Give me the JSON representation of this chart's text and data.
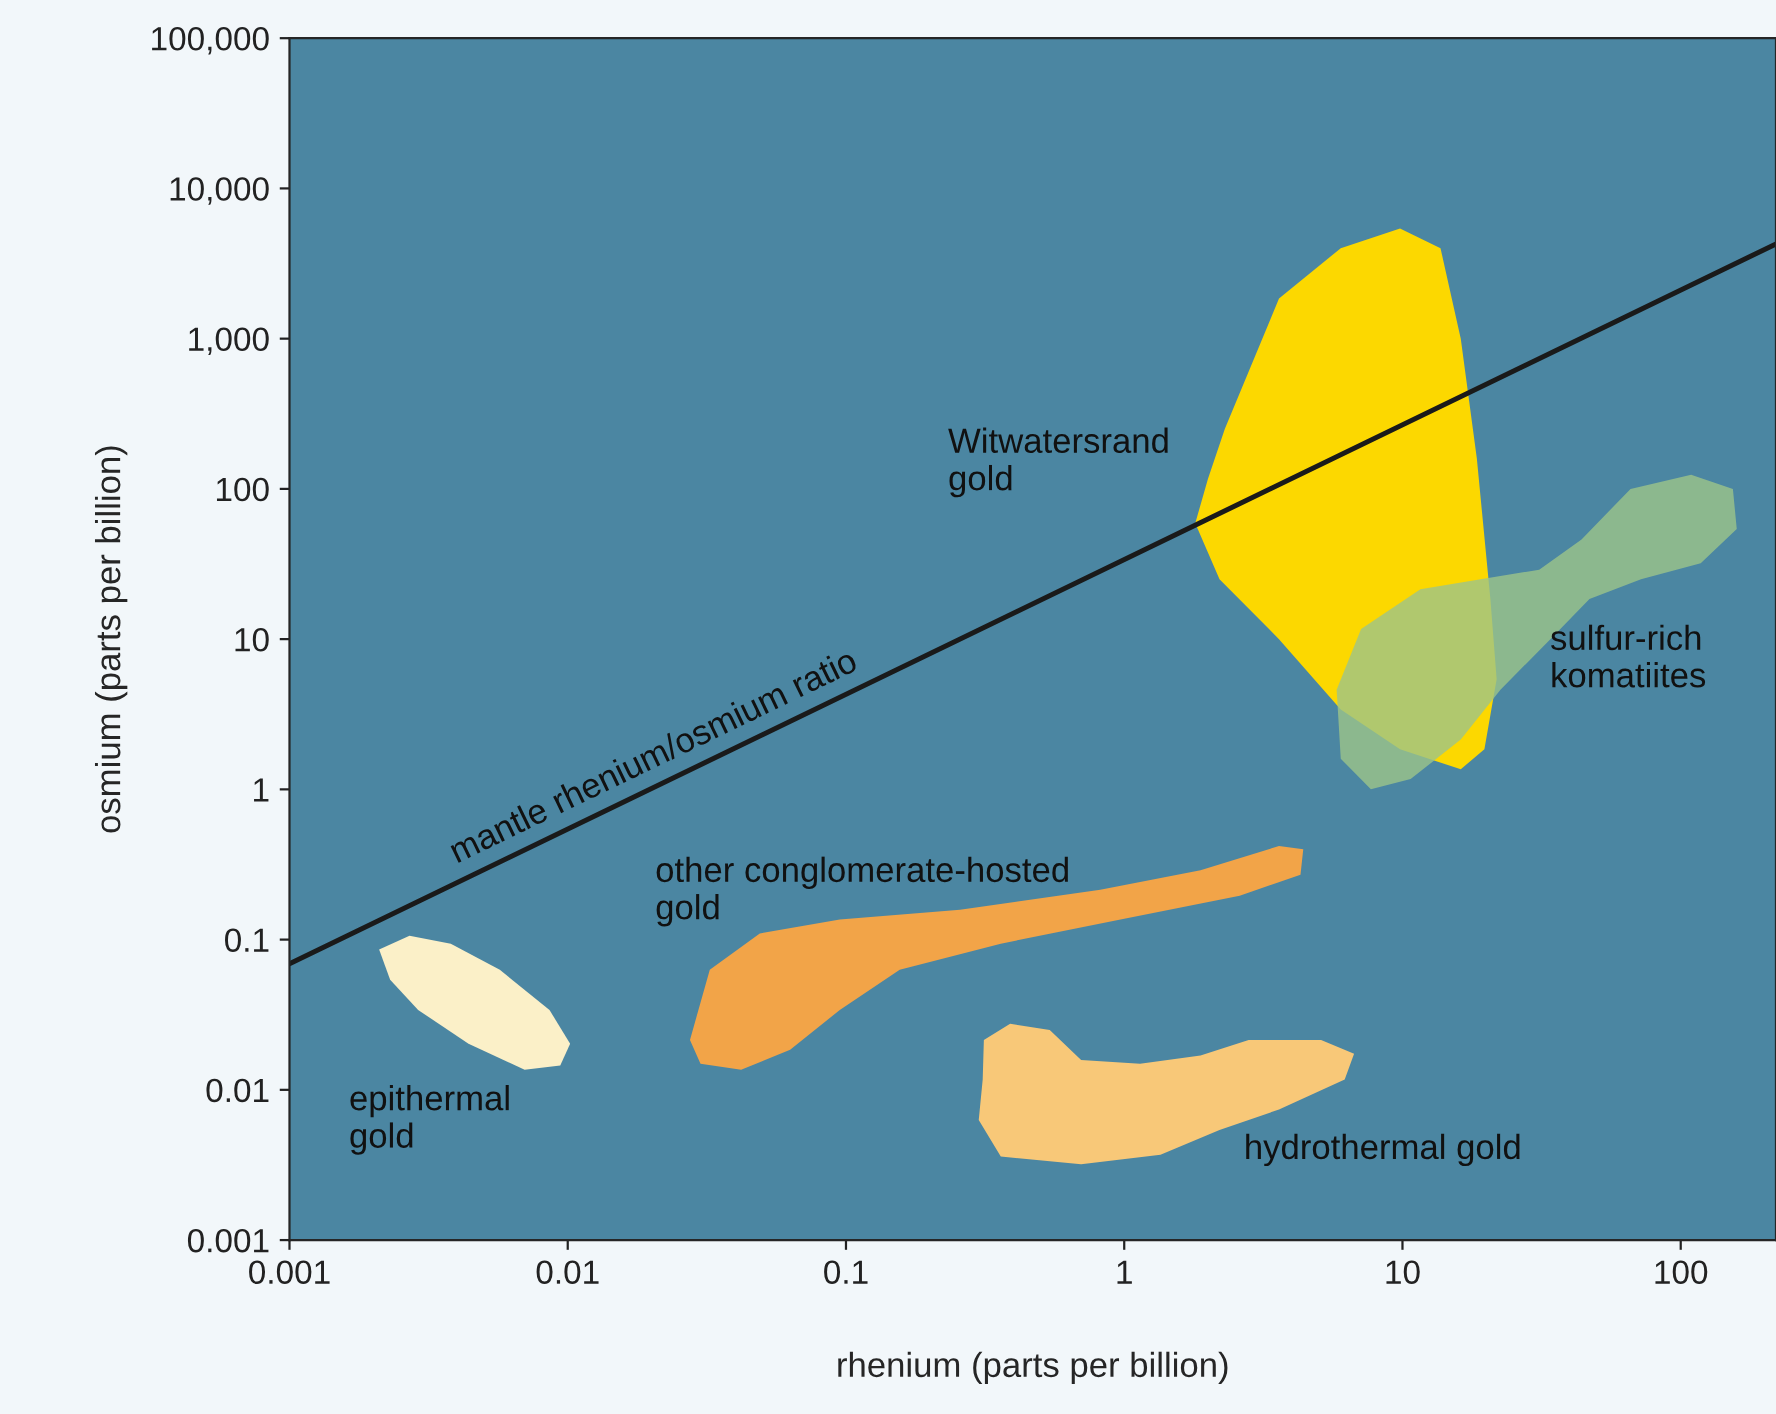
{
  "chart_data": {
    "type": "area",
    "xlabel": "rhenium (parts per billion)",
    "ylabel": "osmium (parts per billion)",
    "log": "xy",
    "grid": false,
    "xlim": [
      0.001,
      220
    ],
    "ylim": [
      0.001,
      100000
    ],
    "xticks": [
      0.001,
      0.01,
      0.1,
      1,
      10,
      100
    ],
    "yticks": [
      0.001,
      0.01,
      0.1,
      1,
      10,
      100,
      {
        "value": 1000,
        "label": "1,000"
      },
      {
        "value": 10000,
        "label": "10,000"
      },
      {
        "value": 100000,
        "label": "100,000"
      }
    ],
    "series": [
      {
        "name": "Witwatersrand\ngold",
        "color": "#fcd800",
        "x": [
          2.3,
          3.6,
          6.0,
          9.8,
          13.7,
          16.2,
          18.5,
          20.7,
          21.8,
          19.7,
          16.2,
          9.8,
          6.0,
          3.6,
          2.2,
          1.8,
          2.0
        ],
        "values": [
          251,
          1850,
          4000,
          5400,
          4000,
          1000,
          160,
          18.5,
          5.4,
          1.85,
          1.36,
          1.85,
          3.4,
          10,
          25,
          59,
          117
        ]
      },
      {
        "name": "sulfur-rich\nkomatiites",
        "color": "#9cc48a",
        "x": [
          5.8,
          7.1,
          11.6,
          19.1,
          31,
          44,
          66,
          109,
          154,
          159,
          118,
          72,
          47,
          34,
          22.5,
          16.2,
          10.7,
          7.7,
          6.0
        ],
        "values": [
          4.6,
          11.7,
          21.5,
          25,
          29,
          46,
          100,
          124,
          100,
          54,
          32,
          25,
          18.5,
          10,
          4.6,
          2.15,
          1.17,
          1.0,
          1.6
        ]
      },
      {
        "name": "other conglomerate-hosted\ngold",
        "color": "#f2a448",
        "x": [
          0.0275,
          0.0324,
          0.049,
          0.095,
          0.257,
          0.82,
          1.88,
          3.6,
          4.4,
          4.3,
          2.6,
          0.97,
          0.36,
          0.156,
          0.095,
          0.063,
          0.042,
          0.03
        ],
        "values": [
          0.0215,
          0.063,
          0.11,
          0.136,
          0.158,
          0.215,
          0.29,
          0.42,
          0.4,
          0.27,
          0.196,
          0.136,
          0.094,
          0.063,
          0.034,
          0.0185,
          0.0136,
          0.0149
        ]
      },
      {
        "name": "hydrothermal gold",
        "color": "#f8c878",
        "x": [
          0.313,
          0.389,
          0.54,
          0.7,
          1.14,
          1.88,
          2.8,
          5.1,
          6.7,
          6.2,
          3.6,
          2.2,
          1.35,
          0.7,
          0.36,
          0.3,
          0.31
        ],
        "values": [
          0.0215,
          0.0275,
          0.025,
          0.0158,
          0.0149,
          0.0169,
          0.0215,
          0.0215,
          0.0174,
          0.0117,
          0.0074,
          0.0054,
          0.0037,
          0.0032,
          0.0036,
          0.0063,
          0.0117
        ]
      },
      {
        "name": "epithermal\ngold",
        "color": "#fbf0c8",
        "x": [
          0.0021,
          0.0027,
          0.0038,
          0.0057,
          0.0086,
          0.0102,
          0.0094,
          0.007,
          0.0044,
          0.0029,
          0.0023
        ],
        "values": [
          0.086,
          0.106,
          0.094,
          0.063,
          0.034,
          0.0203,
          0.0145,
          0.0136,
          0.0203,
          0.034,
          0.054
        ]
      },
      {
        "type": "line",
        "name": "mantle rhenium/osmium ratio",
        "color": "#1a1a1a",
        "x": [
          0.001,
          220
        ],
        "values": [
          0.069,
          4270
        ]
      }
    ]
  }
}
